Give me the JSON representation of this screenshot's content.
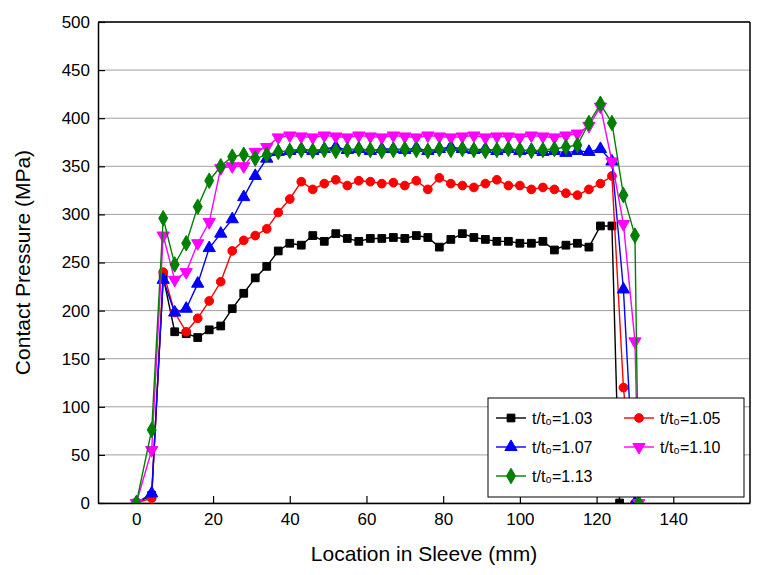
{
  "chart_data": {
    "type": "line",
    "x_label": "Location in Sleeve (mm)",
    "y_label": "Contact Pressure (MPa)",
    "xlim": [
      -10,
      160
    ],
    "xticks": [
      0,
      20,
      40,
      60,
      80,
      100,
      120,
      140
    ],
    "ylim": [
      0,
      500
    ],
    "yticks": [
      0,
      50,
      100,
      150,
      200,
      250,
      300,
      350,
      400,
      450,
      500
    ],
    "grid": true,
    "legend": "lower right",
    "series": [
      {
        "name": "t/t₀=1.03",
        "color": "#000000",
        "marker": "square",
        "line_style": "solid",
        "x": [
          0,
          4,
          7,
          10,
          13,
          16,
          19,
          22,
          25,
          28,
          31,
          34,
          37,
          40,
          43,
          46,
          49,
          52,
          55,
          58,
          61,
          64,
          67,
          70,
          73,
          76,
          79,
          82,
          85,
          88,
          91,
          94,
          97,
          100,
          103,
          106,
          109,
          112,
          115,
          118,
          121,
          124,
          126
        ],
        "values": [
          0,
          8,
          235,
          178,
          176,
          172,
          180,
          184,
          202,
          218,
          234,
          246,
          262,
          270,
          268,
          278,
          272,
          280,
          275,
          272,
          275,
          275,
          276,
          275,
          278,
          276,
          266,
          274,
          280,
          276,
          274,
          272,
          272,
          270,
          270,
          272,
          263,
          268,
          270,
          266,
          288,
          288,
          0
        ]
      },
      {
        "name": "t/t₀=1.05",
        "color": "#ff0000",
        "marker": "circle",
        "line_style": "solid",
        "x": [
          0,
          4,
          7,
          10,
          13,
          16,
          19,
          22,
          25,
          28,
          31,
          34,
          37,
          40,
          43,
          46,
          49,
          52,
          55,
          58,
          61,
          64,
          67,
          70,
          73,
          76,
          79,
          82,
          85,
          88,
          91,
          94,
          97,
          100,
          103,
          106,
          109,
          112,
          115,
          118,
          121,
          124,
          127,
          130
        ],
        "values": [
          0,
          5,
          240,
          198,
          178,
          192,
          210,
          230,
          262,
          273,
          278,
          285,
          302,
          316,
          334,
          326,
          332,
          336,
          330,
          335,
          334,
          332,
          333,
          330,
          335,
          326,
          338,
          332,
          330,
          328,
          332,
          336,
          330,
          330,
          326,
          328,
          326,
          322,
          320,
          326,
          332,
          340,
          120,
          0
        ]
      },
      {
        "name": "t/t₀=1.07",
        "color": "#0000ff",
        "marker": "triangle-up",
        "line_style": "solid",
        "x": [
          0,
          4,
          7,
          10,
          13,
          16,
          19,
          22,
          25,
          28,
          31,
          34,
          37,
          40,
          43,
          46,
          49,
          52,
          55,
          58,
          61,
          64,
          67,
          70,
          73,
          76,
          79,
          82,
          85,
          88,
          91,
          94,
          97,
          100,
          103,
          106,
          109,
          112,
          115,
          118,
          121,
          124,
          127,
          130
        ],
        "values": [
          0,
          10,
          232,
          198,
          202,
          228,
          265,
          280,
          295,
          318,
          340,
          358,
          365,
          366,
          368,
          366,
          368,
          370,
          367,
          368,
          366,
          368,
          368,
          367,
          369,
          366,
          368,
          370,
          368,
          367,
          368,
          366,
          368,
          366,
          367,
          365,
          366,
          364,
          366,
          365,
          368,
          355,
          222,
          0
        ]
      },
      {
        "name": "t/t₀=1.10",
        "color": "#ff00ff",
        "marker": "triangle-down",
        "line_style": "solid",
        "x": [
          0,
          4,
          7,
          10,
          13,
          16,
          19,
          22,
          25,
          28,
          31,
          34,
          37,
          40,
          43,
          46,
          49,
          52,
          55,
          58,
          61,
          64,
          67,
          70,
          73,
          76,
          79,
          82,
          85,
          88,
          91,
          94,
          97,
          100,
          103,
          106,
          109,
          112,
          115,
          118,
          121,
          124,
          127,
          130,
          131
        ],
        "values": [
          0,
          55,
          278,
          232,
          240,
          270,
          292,
          348,
          350,
          350,
          365,
          370,
          380,
          382,
          381,
          380,
          382,
          381,
          380,
          382,
          381,
          380,
          382,
          381,
          380,
          382,
          381,
          380,
          381,
          382,
          380,
          381,
          381,
          380,
          382,
          381,
          380,
          382,
          384,
          392,
          412,
          355,
          290,
          168,
          0
        ]
      },
      {
        "name": "t/t₀=1.13",
        "color": "#008000",
        "marker": "diamond",
        "line_style": "solid",
        "x": [
          0,
          4,
          7,
          10,
          13,
          16,
          19,
          22,
          25,
          28,
          31,
          34,
          37,
          40,
          43,
          46,
          49,
          52,
          55,
          58,
          61,
          64,
          67,
          70,
          73,
          76,
          79,
          82,
          85,
          88,
          91,
          94,
          97,
          100,
          103,
          106,
          109,
          112,
          115,
          118,
          121,
          124,
          127,
          130,
          131
        ],
        "values": [
          0,
          76,
          296,
          248,
          270,
          308,
          335,
          350,
          360,
          362,
          358,
          362,
          365,
          366,
          367,
          366,
          367,
          366,
          367,
          368,
          367,
          366,
          367,
          368,
          367,
          366,
          368,
          367,
          368,
          367,
          366,
          367,
          368,
          367,
          366,
          367,
          368,
          370,
          372,
          395,
          415,
          395,
          320,
          278,
          0
        ]
      }
    ]
  }
}
